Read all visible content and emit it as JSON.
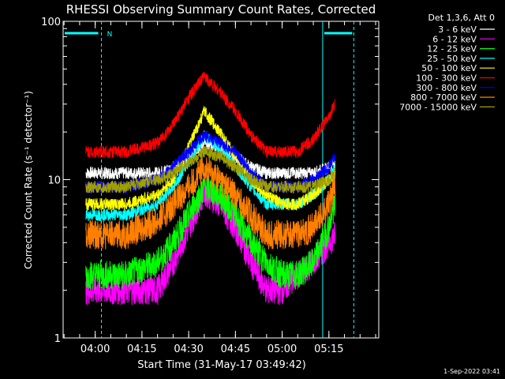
{
  "chart_data": {
    "type": "line",
    "title": "RHESSI Observing Summary Count Rates, Corrected",
    "xlabel": "Start Time (31-May-17 03:49:42)",
    "ylabel": "Corrected Count Rate (s⁻¹ detector⁻¹)",
    "y_scale": "log",
    "ylim": [
      1,
      100
    ],
    "xlim": [
      "03:49:42",
      "05:31:00"
    ],
    "x_ticks": [
      "04:00",
      "04:15",
      "04:30",
      "04:45",
      "05:00",
      "05:15"
    ],
    "y_ticks": [
      "1",
      "10",
      "100"
    ],
    "grid": false,
    "legend_header": "Det 1,3,6, Att 0",
    "legend_position": "top-right",
    "annotations": {
      "night_marker": "N",
      "attenuator_flag_intervals": [
        [
          "03:49:42",
          "04:02"
        ],
        [
          "05:13",
          "05:23"
        ]
      ]
    },
    "x": [
      "03:57",
      "04:00",
      "04:10",
      "04:20",
      "04:25",
      "04:30",
      "04:35",
      "04:40",
      "04:45",
      "04:50",
      "04:55",
      "05:00",
      "05:05",
      "05:10",
      "05:15",
      "05:17"
    ],
    "series": [
      {
        "name": "3 - 6 keV",
        "color": "#ffffff",
        "values": [
          11,
          11,
          11,
          11,
          12,
          14,
          17,
          16,
          14,
          12,
          11,
          11,
          11,
          11,
          12,
          13
        ]
      },
      {
        "name": "6 - 12 keV",
        "color": "#ff00ff",
        "values": [
          2,
          2,
          2,
          2,
          3,
          5,
          8.5,
          7,
          5,
          3,
          2,
          2,
          2.5,
          3,
          4,
          4.5
        ]
      },
      {
        "name": "12 - 25 keV",
        "color": "#00ff00",
        "values": [
          2.5,
          2.5,
          2.5,
          3,
          4,
          6,
          9,
          8,
          6,
          4,
          3,
          2.5,
          2.5,
          3,
          5,
          7
        ]
      },
      {
        "name": "25 - 50 keV",
        "color": "#00ffff",
        "values": [
          6,
          6,
          6,
          7,
          9,
          13,
          19,
          16,
          12,
          9,
          7,
          7,
          7,
          8,
          10,
          12
        ]
      },
      {
        "name": "50 - 100 keV",
        "color": "#ffff00",
        "values": [
          7,
          7,
          7,
          8,
          10,
          16,
          27,
          20,
          14,
          10,
          8,
          7,
          7,
          8,
          10,
          11
        ]
      },
      {
        "name": "100 - 300 keV",
        "color": "#ff0000",
        "values": [
          15,
          15,
          15,
          17,
          22,
          33,
          45,
          36,
          27,
          19,
          15,
          15,
          15,
          18,
          25,
          30
        ]
      },
      {
        "name": "300 - 800 keV",
        "color": "#0000ff",
        "values": [
          9,
          9,
          9,
          10,
          12,
          15,
          19,
          17,
          15,
          11,
          9,
          9,
          9,
          10,
          12,
          14
        ]
      },
      {
        "name": "800 - 7000 keV",
        "color": "#ff7f00",
        "values": [
          4.5,
          4.5,
          4.5,
          5.5,
          7,
          9,
          12,
          10,
          8,
          6,
          4.5,
          4.5,
          4.5,
          5,
          7,
          9
        ]
      },
      {
        "name": "7000 - 15000 keV",
        "color": "#a0a000",
        "values": [
          9,
          9,
          9,
          10,
          11,
          13,
          15,
          14,
          12,
          10,
          9,
          9,
          9,
          9,
          10,
          11
        ]
      }
    ],
    "timestamp": "1-Sep-2022 03:41"
  }
}
